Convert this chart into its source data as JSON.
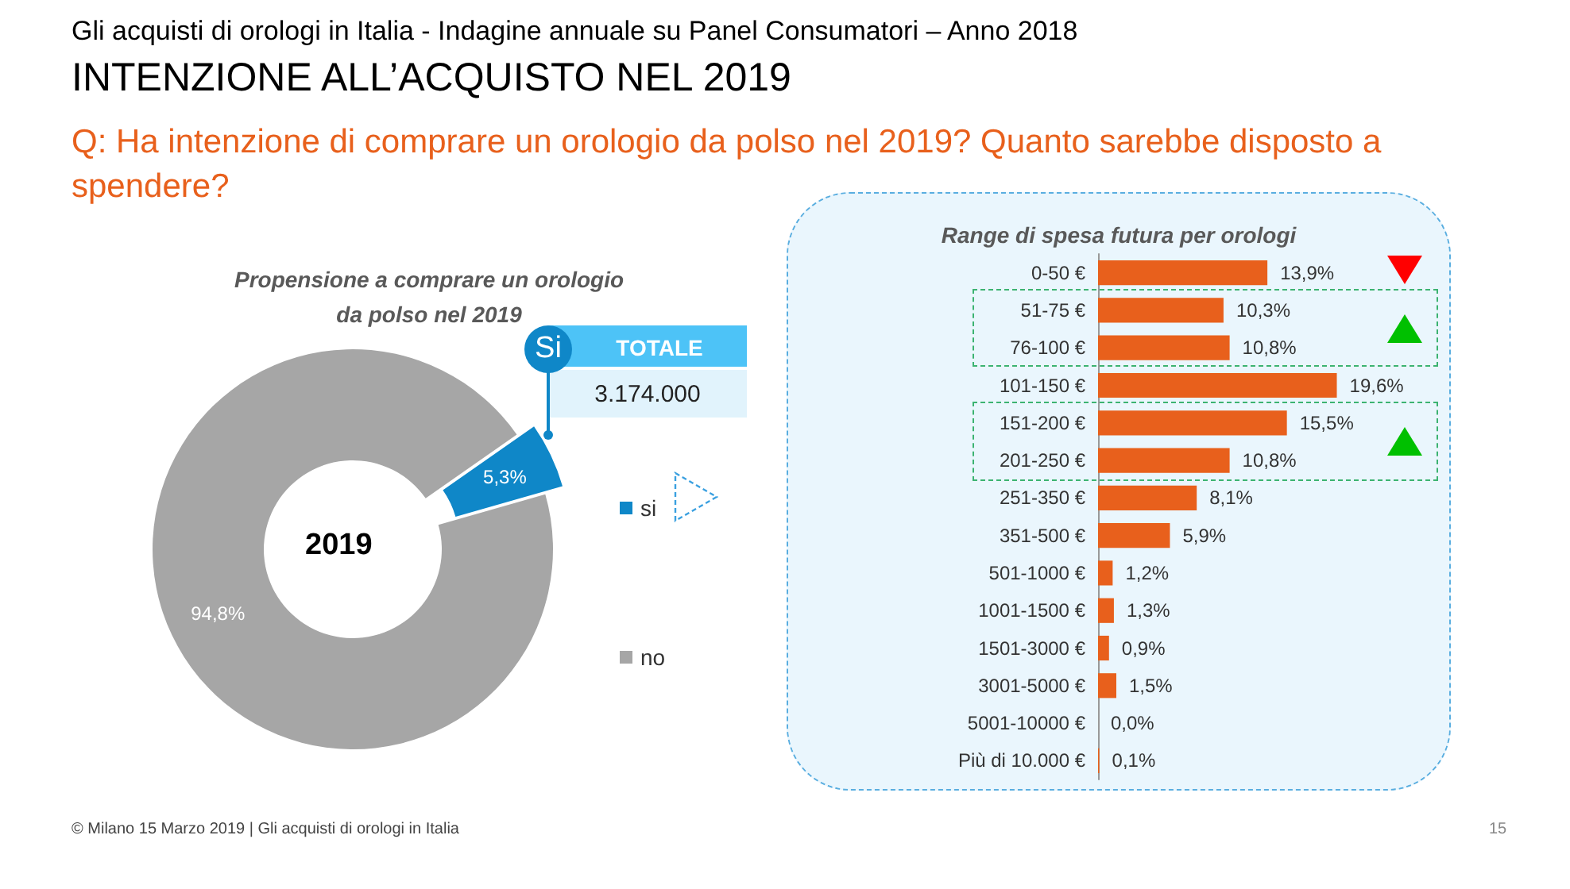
{
  "chart_data": [
    {
      "type": "donut",
      "title": "Propensione a comprare un orologio\nda polso nel 2019",
      "categories": [
        "si",
        "no"
      ],
      "values": [
        5.3,
        94.8
      ],
      "colors": [
        "#0f87c8",
        "#a6a6a6"
      ],
      "value_labels": [
        "5,3%",
        "94,8%"
      ],
      "legend": "right",
      "annotations": [
        "Gli acquisti di orologi in Italia - Indagine annuale su Panel Consumatori – Anno 2018",
        "INTENZIONE ALL’ACQUISTO NEL 2019",
        "Q: Ha intenzione di comprare un orologio da polso nel 2019? Quanto sarebbe disposto a spendere?",
        "2019",
        "Si",
        "TOTALE",
        "3.174.000",
        "© Milano 15 Marzo 2019 | Gli acquisti di orologi in Italia",
        "15"
      ]
    },
    {
      "type": "bar",
      "orientation": "horizontal",
      "title": "Range di spesa futura per orologi",
      "categories": [
        "0-50 €",
        "51-75 €",
        "76-100 €",
        "101-150 €",
        "151-200 €",
        "201-250 €",
        "251-350 €",
        "351-500 €",
        "501-1000 €",
        "1001-1500 €",
        "1501-3000 €",
        "3001-5000 €",
        "5001-10000 €",
        "Più di 10.000 €"
      ],
      "values": [
        13.9,
        10.3,
        10.8,
        19.6,
        15.5,
        10.8,
        8.1,
        5.9,
        1.2,
        1.3,
        0.9,
        1.5,
        0.0,
        0.1
      ],
      "color": "#e8601c",
      "value_labels": [
        "13,9%",
        "10,3%",
        "10,8%",
        "19,6%",
        "15,5%",
        "10,8%",
        "8,1%",
        "5,9%",
        "1,2%",
        "1,3%",
        "0,9%",
        "1,5%",
        "0,0%",
        "0,1%"
      ]
    }
  ]
}
